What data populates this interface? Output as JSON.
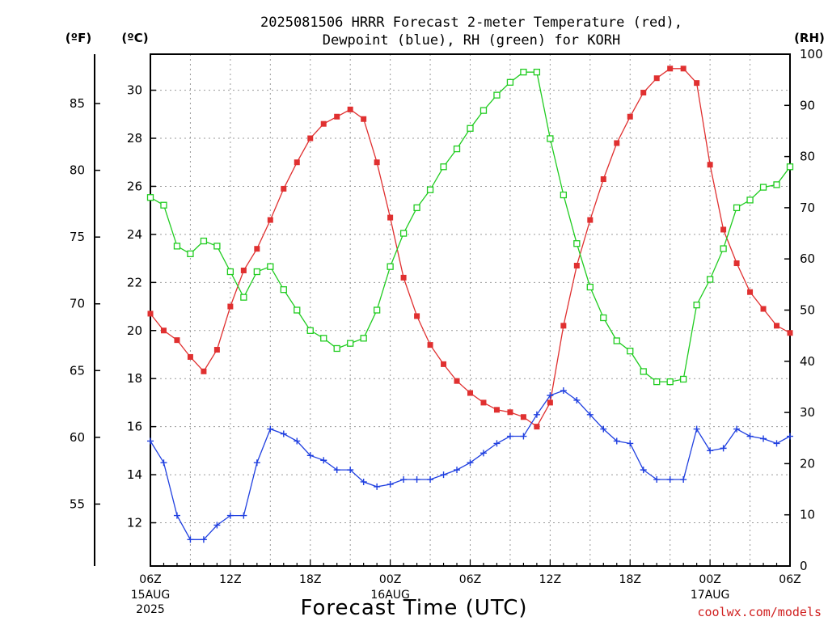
{
  "title_line1": "2025081506 HRRR Forecast 2-meter Temperature (red),",
  "title_line2": "Dewpoint (blue), RH (green) for KORH",
  "units": {
    "fahrenheit": "(ºF)",
    "celsius": "(ºC)",
    "rh": "(RH)"
  },
  "xlabel": "Forecast Time (UTC)",
  "credit": "coolwx.com/models",
  "x_ticks": [
    {
      "h": 0,
      "label": "06Z",
      "sub1": "15AUG",
      "sub2": "2025"
    },
    {
      "h": 6,
      "label": "12Z"
    },
    {
      "h": 12,
      "label": "18Z"
    },
    {
      "h": 18,
      "label": "00Z",
      "sub1": "16AUG"
    },
    {
      "h": 24,
      "label": "06Z"
    },
    {
      "h": 30,
      "label": "12Z"
    },
    {
      "h": 36,
      "label": "18Z"
    },
    {
      "h": 42,
      "label": "00Z",
      "sub1": "17AUG"
    },
    {
      "h": 48,
      "label": "06Z"
    }
  ],
  "f_ticks": [
    "55",
    "60",
    "65",
    "70",
    "75",
    "80",
    "85"
  ],
  "c_ticks": [
    "12",
    "14",
    "16",
    "18",
    "20",
    "22",
    "24",
    "26",
    "28",
    "30"
  ],
  "rh_ticks": [
    "0",
    "10",
    "20",
    "30",
    "40",
    "50",
    "60",
    "70",
    "80",
    "90",
    "100"
  ],
  "colors": {
    "temperature": "#e03030",
    "dewpoint": "#2040e0",
    "rh": "#20cc20"
  },
  "chart_data": {
    "type": "line",
    "title": "2025081506 HRRR Forecast 2-meter Temperature (red), Dewpoint (blue), RH (green) for KORH",
    "xlabel": "Forecast Time (UTC)",
    "ylabel_left": "(ºC)",
    "ylabel_far_left": "(ºF)",
    "ylabel_right": "(RH)",
    "x_unit": "forecast hour from 2025-08-15 06Z",
    "xlim": [
      0,
      48
    ],
    "ylim_celsius": [
      10.2,
      31.5
    ],
    "ylim_rh": [
      0,
      100
    ],
    "grid": true,
    "x": [
      0,
      1,
      2,
      3,
      4,
      5,
      6,
      7,
      8,
      9,
      10,
      11,
      12,
      13,
      14,
      15,
      16,
      17,
      18,
      19,
      20,
      21,
      22,
      23,
      24,
      25,
      26,
      27,
      28,
      29,
      30,
      31,
      32,
      33,
      34,
      35,
      36,
      37,
      38,
      39,
      40,
      41,
      42,
      43,
      44,
      45,
      46,
      47,
      48
    ],
    "series": [
      {
        "name": "Temperature",
        "axis": "celsius",
        "values": [
          20.7,
          20.0,
          19.6,
          18.9,
          18.3,
          19.2,
          21.0,
          22.5,
          23.4,
          24.6,
          25.9,
          27.0,
          28.0,
          28.6,
          28.9,
          29.2,
          28.8,
          27.0,
          24.7,
          22.2,
          20.6,
          19.4,
          18.6,
          17.9,
          17.4,
          17.0,
          16.7,
          16.6,
          16.4,
          16.0,
          17.0,
          20.2,
          22.7,
          24.6,
          26.3,
          27.8,
          28.9,
          29.9,
          30.5,
          30.9,
          30.9,
          30.3,
          26.9,
          24.2,
          22.8,
          21.6,
          20.9,
          20.2,
          19.9
        ]
      },
      {
        "name": "Dewpoint",
        "axis": "celsius",
        "values": [
          15.4,
          14.5,
          12.3,
          11.3,
          11.3,
          11.9,
          12.3,
          12.3,
          14.5,
          15.9,
          15.7,
          15.4,
          14.8,
          14.6,
          14.2,
          14.2,
          13.7,
          13.5,
          13.6,
          13.8,
          13.8,
          13.8,
          14.0,
          14.2,
          14.5,
          14.9,
          15.3,
          15.6,
          15.6,
          16.5,
          17.3,
          17.5,
          17.1,
          16.5,
          15.9,
          15.4,
          15.3,
          14.2,
          13.8,
          13.8,
          13.8,
          15.9,
          15.0,
          15.1,
          15.9,
          15.6,
          15.5,
          15.3,
          15.6
        ]
      },
      {
        "name": "RH",
        "axis": "rh",
        "values": [
          72,
          70.5,
          62.5,
          61,
          63.5,
          62.5,
          57.5,
          52.5,
          57.5,
          58.5,
          54,
          50,
          46,
          44.5,
          42.5,
          43.5,
          44.5,
          50,
          58.5,
          65,
          70,
          73.5,
          78,
          81.5,
          85.5,
          89,
          92,
          94.5,
          96.5,
          96.5,
          83.5,
          72.5,
          63,
          54.5,
          48.5,
          44,
          42,
          38,
          36,
          36,
          36.5,
          51,
          56,
          62,
          70,
          71.5,
          74,
          74.5,
          78
        ]
      }
    ]
  }
}
